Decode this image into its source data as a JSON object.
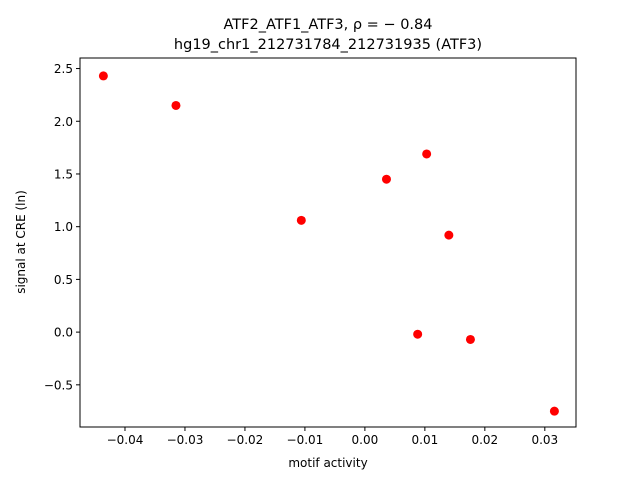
{
  "chart_data": {
    "type": "scatter",
    "title_line1": "ATF2_ATF1_ATF3, ρ = − 0.84",
    "title_line2": "hg19_chr1_212731784_212731935 (ATF3)",
    "xlabel": "motif activity",
    "ylabel": "signal at CRE (ln)",
    "xlim": [
      -0.0475,
      0.0352
    ],
    "ylim": [
      -0.9,
      2.6
    ],
    "xticks": [
      -0.04,
      -0.03,
      -0.02,
      -0.01,
      0.0,
      0.01,
      0.02,
      0.03
    ],
    "xtick_labels": [
      "−0.04",
      "−0.03",
      "−0.02",
      "−0.01",
      "0.00",
      "0.01",
      "0.02",
      "0.03"
    ],
    "yticks": [
      -0.5,
      0.0,
      0.5,
      1.0,
      1.5,
      2.0,
      2.5
    ],
    "ytick_labels": [
      "−0.5",
      "0.0",
      "0.5",
      "1.0",
      "1.5",
      "2.0",
      "2.5"
    ],
    "grid": false,
    "marker_color": "#ff0000",
    "points": [
      {
        "x": -0.0436,
        "y": 2.43
      },
      {
        "x": -0.0315,
        "y": 2.15
      },
      {
        "x": -0.0106,
        "y": 1.06
      },
      {
        "x": 0.0036,
        "y": 1.45
      },
      {
        "x": 0.0103,
        "y": 1.69
      },
      {
        "x": 0.014,
        "y": 0.92
      },
      {
        "x": 0.0088,
        "y": -0.02
      },
      {
        "x": 0.0176,
        "y": -0.07
      },
      {
        "x": 0.0316,
        "y": -0.75
      }
    ]
  }
}
